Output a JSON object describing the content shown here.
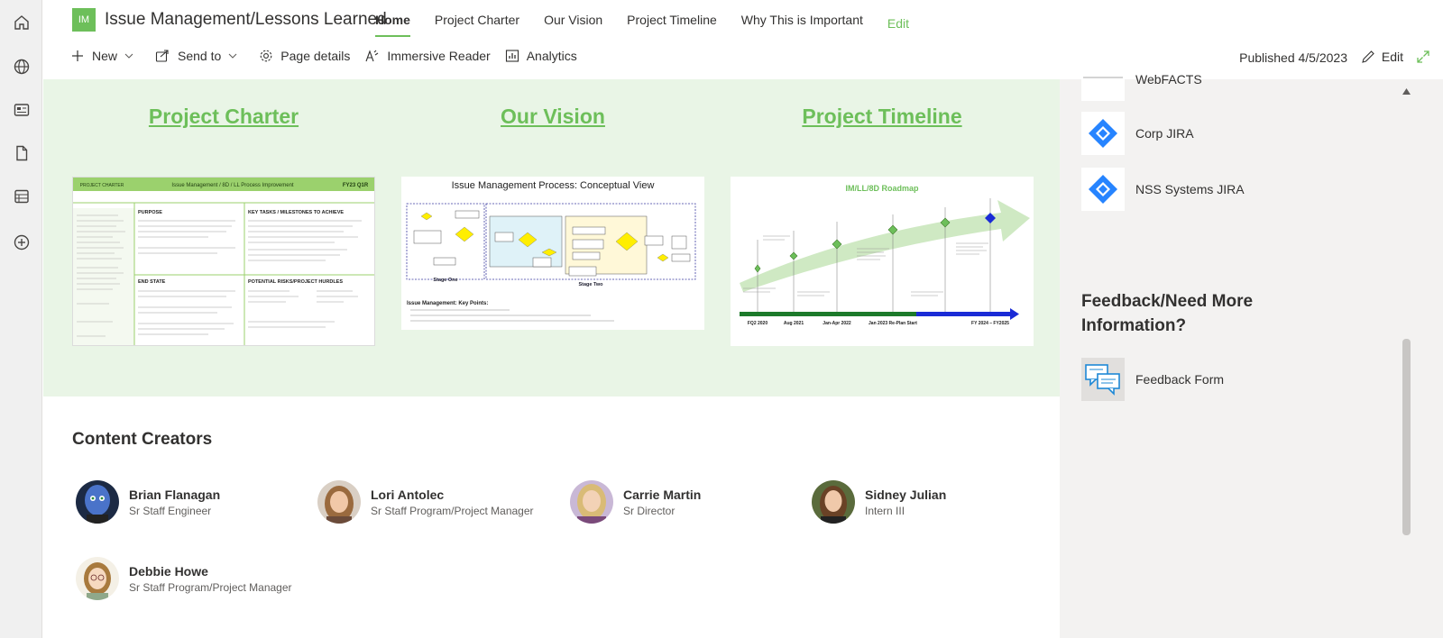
{
  "site": {
    "logo_text": "IM",
    "title": "Issue Management/Lessons Learned"
  },
  "nav": {
    "items": [
      "Home",
      "Project Charter",
      "Our Vision",
      "Project Timeline",
      "Why This is Important"
    ],
    "edit_label": "Edit"
  },
  "commandbar": {
    "new_label": "New",
    "send_to_label": "Send to",
    "page_details_label": "Page details",
    "immersive_reader_label": "Immersive Reader",
    "analytics_label": "Analytics",
    "published": "Published 4/5/2023",
    "edit_label": "Edit"
  },
  "sections": [
    {
      "heading": "Project Charter"
    },
    {
      "heading": "Our Vision"
    },
    {
      "heading": "Project Timeline"
    }
  ],
  "charter_doc": {
    "header_left": "PROJECT CHARTER",
    "header_mid": "Issue Management / 8D / LL Process Improvement",
    "header_right": "FY23 Q1R",
    "purpose": "PURPOSE",
    "key_tasks": "KEY TASKS / MILESTONES TO ACHIEVE",
    "end_state": "END STATE",
    "risks": "POTENTIAL RISKS/PROJECT HURDLES"
  },
  "vision_doc": {
    "title": "Issue Management Process: Conceptual View",
    "key_points": "Issue Management: Key Points:",
    "stage_one": "Stage One",
    "stage_two": "Stage Two"
  },
  "timeline_doc": {
    "title": "IM/LL/8D Roadmap",
    "milestones": [
      "FQ2 2020",
      "Aug 2021",
      "Jan-Apr 2022",
      "Jan 2023 Re-Plan Start",
      "FY 2024 – FY2025"
    ]
  },
  "content_creators": {
    "title": "Content Creators",
    "people": [
      {
        "name": "Brian Flanagan",
        "role": "Sr Staff Engineer"
      },
      {
        "name": "Lori Antolec",
        "role": "Sr Staff Program/Project Manager"
      },
      {
        "name": "Carrie Martin",
        "role": "Sr Director"
      },
      {
        "name": "Sidney Julian",
        "role": "Intern III"
      },
      {
        "name": "Debbie Howe",
        "role": "Sr Staff Program/Project Manager"
      }
    ]
  },
  "sidebar": {
    "links": [
      {
        "label": "WebFACTS"
      },
      {
        "label": "Corp JIRA"
      },
      {
        "label": "NSS Systems JIRA"
      }
    ],
    "feedback_title": "Feedback/Need More Information?",
    "feedback_link": "Feedback Form"
  },
  "colors": {
    "accent": "#6dbf5a",
    "jira": "#2684ff"
  }
}
